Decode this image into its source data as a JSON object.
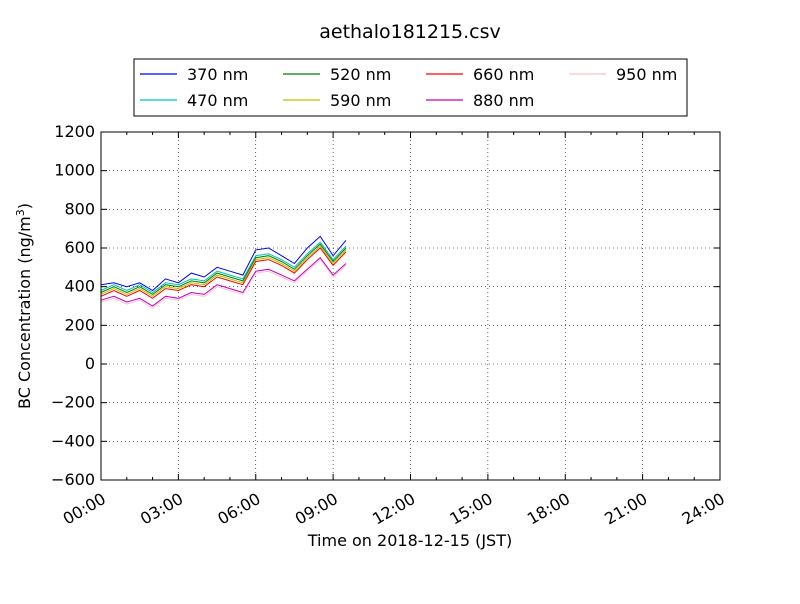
{
  "chart_data": {
    "type": "line",
    "title": "aethalo181215.csv",
    "xlabel": "Time on 2018-12-15 (JST)",
    "ylabel_main": "BC Concentration (ng/m",
    "ylabel_sup": "3",
    "ylabel_end": ")",
    "xlim_hours": [
      0,
      24
    ],
    "ylim": [
      -600,
      1200
    ],
    "x_ticks": [
      {
        "hour": 0,
        "label": "00:00"
      },
      {
        "hour": 3,
        "label": "03:00"
      },
      {
        "hour": 6,
        "label": "06:00"
      },
      {
        "hour": 9,
        "label": "09:00"
      },
      {
        "hour": 12,
        "label": "12:00"
      },
      {
        "hour": 15,
        "label": "15:00"
      },
      {
        "hour": 18,
        "label": "18:00"
      },
      {
        "hour": 21,
        "label": "21:00"
      },
      {
        "hour": 24,
        "label": "24:00"
      }
    ],
    "y_ticks": [
      -600,
      -400,
      -200,
      0,
      200,
      400,
      600,
      800,
      1000,
      1200
    ],
    "grid": true,
    "legend_position": "top-center",
    "series": [
      {
        "name": "370 nm",
        "color": "#0000ff"
      },
      {
        "name": "470 nm",
        "color": "#00bfbf"
      },
      {
        "name": "520 nm",
        "color": "#008000"
      },
      {
        "name": "590 nm",
        "color": "#bfbf00"
      },
      {
        "name": "660 nm",
        "color": "#ff0000"
      },
      {
        "name": "880 nm",
        "color": "#bf00bf"
      },
      {
        "name": "950 nm",
        "color": "#ffc0cb"
      }
    ],
    "x_hours": [
      0.0,
      0.5,
      1.0,
      1.5,
      2.0,
      2.5,
      3.0,
      3.5,
      4.0,
      4.5,
      5.0,
      5.5,
      6.0,
      6.5,
      7.0,
      7.5,
      8.0,
      8.5,
      9.0,
      9.5
    ],
    "values": {
      "370 nm": [
        410,
        420,
        400,
        420,
        380,
        440,
        420,
        470,
        450,
        500,
        480,
        460,
        590,
        600,
        560,
        520,
        600,
        660,
        560,
        640
      ],
      "470 nm": [
        380,
        410,
        380,
        410,
        370,
        420,
        410,
        440,
        430,
        480,
        460,
        440,
        560,
        570,
        540,
        500,
        570,
        630,
        540,
        610
      ],
      "520 nm": [
        370,
        400,
        370,
        400,
        360,
        410,
        400,
        430,
        420,
        470,
        450,
        430,
        550,
        560,
        530,
        490,
        560,
        620,
        530,
        600
      ],
      "590 nm": [
        360,
        390,
        360,
        390,
        350,
        400,
        390,
        420,
        410,
        460,
        440,
        420,
        540,
        550,
        520,
        480,
        550,
        610,
        520,
        590
      ],
      "660 nm": [
        350,
        380,
        350,
        380,
        340,
        390,
        380,
        410,
        400,
        450,
        430,
        410,
        530,
        540,
        510,
        470,
        540,
        600,
        510,
        580
      ],
      "880 nm": [
        330,
        350,
        320,
        340,
        300,
        350,
        340,
        370,
        360,
        410,
        390,
        370,
        480,
        490,
        460,
        430,
        490,
        550,
        460,
        520
      ],
      "950 nm": [
        320,
        340,
        310,
        330,
        290,
        340,
        330,
        360,
        350,
        400,
        380,
        360,
        470,
        480,
        450,
        420,
        480,
        540,
        450,
        510
      ]
    }
  }
}
